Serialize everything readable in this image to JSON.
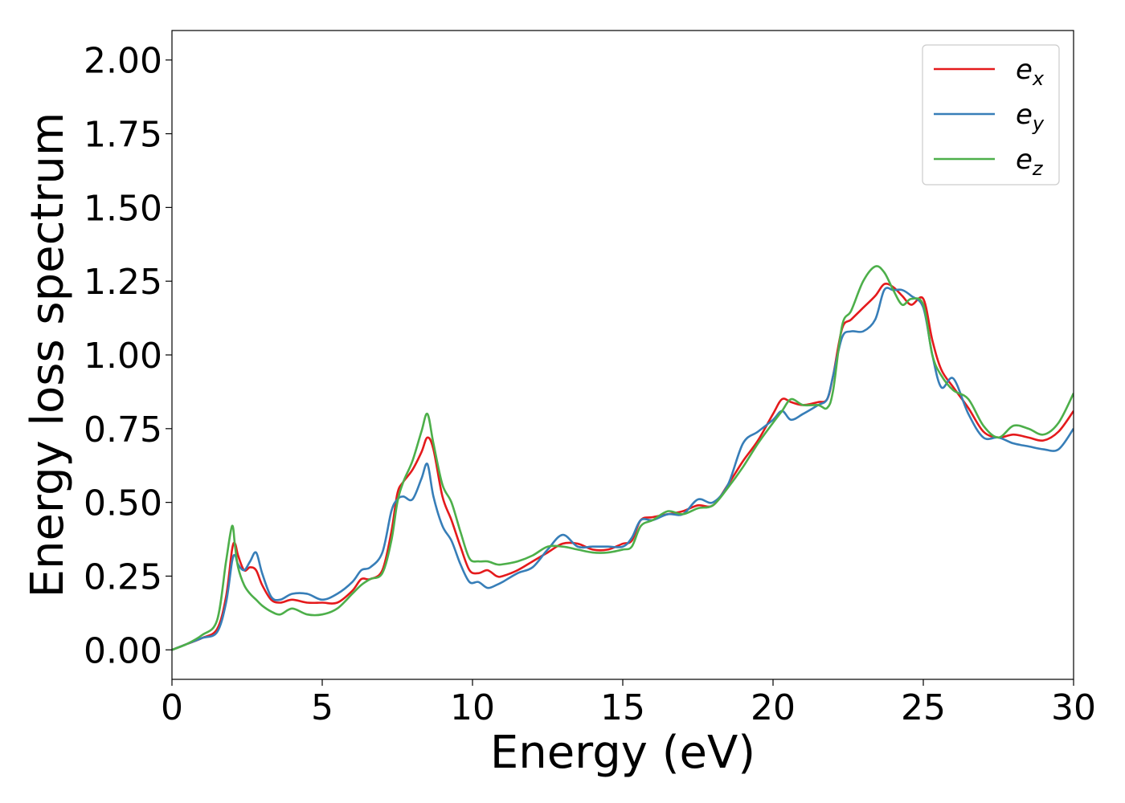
{
  "chart_data": {
    "type": "line",
    "title": "",
    "xlabel": "Energy (eV)",
    "ylabel": "Energy loss spectrum",
    "xlim": [
      0,
      30
    ],
    "ylim": [
      -0.1,
      2.1
    ],
    "xticks": [
      0,
      5,
      10,
      15,
      20,
      25,
      30
    ],
    "xtick_labels": [
      "0",
      "5",
      "10",
      "15",
      "20",
      "25",
      "30"
    ],
    "yticks": [
      0.0,
      0.25,
      0.5,
      0.75,
      1.0,
      1.25,
      1.5,
      1.75,
      2.0
    ],
    "ytick_labels": [
      "0.00",
      "0.25",
      "0.50",
      "0.75",
      "1.00",
      "1.25",
      "1.50",
      "1.75",
      "2.00"
    ],
    "grid": false,
    "legend_position": "top-right",
    "series": [
      {
        "name": "e",
        "subscript": "x",
        "color": "#e41a1c",
        "x": [
          0,
          0.5,
          1,
          1.5,
          1.8,
          2.0,
          2.1,
          2.2,
          2.4,
          2.6,
          2.8,
          3.0,
          3.3,
          3.6,
          4.0,
          4.5,
          5.0,
          5.5,
          6.0,
          6.3,
          6.6,
          7.0,
          7.3,
          7.5,
          7.7,
          8.0,
          8.3,
          8.5,
          8.7,
          9.0,
          9.3,
          9.6,
          9.9,
          10.2,
          10.5,
          10.8,
          11.0,
          11.5,
          12.0,
          12.5,
          13.0,
          13.5,
          14.0,
          14.5,
          15.0,
          15.3,
          15.6,
          16.0,
          16.5,
          17.0,
          17.5,
          18.0,
          18.5,
          19.0,
          19.5,
          20.0,
          20.3,
          20.6,
          21.0,
          21.5,
          21.8,
          22.0,
          22.3,
          22.6,
          23.0,
          23.4,
          23.7,
          24.0,
          24.3,
          24.6,
          25.0,
          25.3,
          25.6,
          26.0,
          26.5,
          27.0,
          27.5,
          28.0,
          28.5,
          29.0,
          29.5,
          30.0
        ],
        "y": [
          0.0,
          0.02,
          0.04,
          0.07,
          0.18,
          0.34,
          0.36,
          0.32,
          0.27,
          0.28,
          0.27,
          0.22,
          0.17,
          0.16,
          0.17,
          0.16,
          0.16,
          0.16,
          0.2,
          0.24,
          0.24,
          0.27,
          0.4,
          0.53,
          0.57,
          0.61,
          0.67,
          0.72,
          0.68,
          0.52,
          0.44,
          0.35,
          0.27,
          0.26,
          0.27,
          0.25,
          0.25,
          0.27,
          0.3,
          0.33,
          0.36,
          0.36,
          0.34,
          0.34,
          0.36,
          0.37,
          0.44,
          0.45,
          0.46,
          0.47,
          0.49,
          0.49,
          0.56,
          0.64,
          0.71,
          0.8,
          0.85,
          0.84,
          0.83,
          0.84,
          0.85,
          0.93,
          1.09,
          1.12,
          1.16,
          1.2,
          1.24,
          1.23,
          1.2,
          1.17,
          1.19,
          1.05,
          0.95,
          0.89,
          0.82,
          0.74,
          0.72,
          0.73,
          0.72,
          0.71,
          0.74,
          0.81
        ]
      },
      {
        "name": "e",
        "subscript": "y",
        "color": "#377eb8",
        "x": [
          0,
          0.5,
          1,
          1.5,
          1.8,
          2.0,
          2.1,
          2.2,
          2.4,
          2.6,
          2.8,
          3.0,
          3.3,
          3.6,
          4.0,
          4.5,
          5.0,
          5.5,
          6.0,
          6.3,
          6.6,
          7.0,
          7.3,
          7.5,
          7.7,
          8.0,
          8.3,
          8.5,
          8.7,
          9.0,
          9.3,
          9.6,
          9.9,
          10.2,
          10.5,
          10.8,
          11.0,
          11.5,
          12.0,
          12.5,
          13.0,
          13.5,
          14.0,
          14.5,
          15.0,
          15.3,
          15.6,
          16.0,
          16.5,
          17.0,
          17.5,
          18.0,
          18.5,
          19.0,
          19.5,
          20.0,
          20.3,
          20.6,
          21.0,
          21.5,
          21.8,
          22.0,
          22.3,
          22.6,
          23.0,
          23.4,
          23.7,
          24.0,
          24.3,
          24.6,
          25.0,
          25.3,
          25.6,
          26.0,
          26.5,
          27.0,
          27.5,
          28.0,
          28.5,
          29.0,
          29.5,
          30.0
        ],
        "y": [
          0.0,
          0.02,
          0.04,
          0.06,
          0.16,
          0.3,
          0.32,
          0.29,
          0.27,
          0.3,
          0.33,
          0.26,
          0.18,
          0.17,
          0.19,
          0.19,
          0.17,
          0.19,
          0.23,
          0.27,
          0.28,
          0.33,
          0.47,
          0.51,
          0.52,
          0.51,
          0.58,
          0.63,
          0.52,
          0.42,
          0.37,
          0.29,
          0.23,
          0.23,
          0.21,
          0.22,
          0.23,
          0.26,
          0.28,
          0.34,
          0.39,
          0.35,
          0.35,
          0.35,
          0.35,
          0.38,
          0.44,
          0.44,
          0.46,
          0.46,
          0.51,
          0.5,
          0.56,
          0.7,
          0.74,
          0.78,
          0.81,
          0.78,
          0.8,
          0.83,
          0.85,
          0.93,
          1.06,
          1.08,
          1.08,
          1.12,
          1.22,
          1.22,
          1.22,
          1.2,
          1.16,
          1.0,
          0.89,
          0.92,
          0.8,
          0.72,
          0.72,
          0.7,
          0.69,
          0.68,
          0.68,
          0.75
        ]
      },
      {
        "name": "e",
        "subscript": "z",
        "color": "#4daf4a",
        "x": [
          0,
          0.5,
          1,
          1.5,
          1.8,
          2.0,
          2.1,
          2.2,
          2.4,
          2.6,
          2.8,
          3.0,
          3.3,
          3.6,
          4.0,
          4.5,
          5.0,
          5.5,
          6.0,
          6.3,
          6.6,
          7.0,
          7.3,
          7.5,
          7.7,
          8.0,
          8.3,
          8.5,
          8.7,
          9.0,
          9.3,
          9.6,
          9.9,
          10.2,
          10.5,
          10.8,
          11.0,
          11.5,
          12.0,
          12.5,
          13.0,
          13.5,
          14.0,
          14.5,
          15.0,
          15.3,
          15.6,
          16.0,
          16.5,
          17.0,
          17.5,
          18.0,
          18.5,
          19.0,
          19.5,
          20.0,
          20.3,
          20.6,
          21.0,
          21.5,
          21.8,
          22.0,
          22.3,
          22.6,
          23.0,
          23.4,
          23.7,
          24.0,
          24.3,
          24.6,
          25.0,
          25.3,
          25.6,
          26.0,
          26.5,
          27.0,
          27.5,
          28.0,
          28.5,
          29.0,
          29.5,
          30.0
        ],
        "y": [
          0.0,
          0.02,
          0.05,
          0.1,
          0.3,
          0.42,
          0.35,
          0.28,
          0.22,
          0.19,
          0.17,
          0.15,
          0.13,
          0.12,
          0.14,
          0.12,
          0.12,
          0.14,
          0.19,
          0.22,
          0.24,
          0.26,
          0.37,
          0.5,
          0.57,
          0.64,
          0.74,
          0.8,
          0.7,
          0.56,
          0.5,
          0.4,
          0.31,
          0.3,
          0.3,
          0.29,
          0.29,
          0.3,
          0.32,
          0.35,
          0.35,
          0.34,
          0.33,
          0.33,
          0.34,
          0.35,
          0.42,
          0.44,
          0.47,
          0.46,
          0.48,
          0.49,
          0.55,
          0.62,
          0.7,
          0.77,
          0.81,
          0.85,
          0.83,
          0.83,
          0.82,
          0.88,
          1.1,
          1.15,
          1.25,
          1.3,
          1.28,
          1.22,
          1.17,
          1.19,
          1.17,
          1.0,
          0.93,
          0.88,
          0.85,
          0.76,
          0.72,
          0.76,
          0.75,
          0.73,
          0.77,
          0.87
        ]
      }
    ]
  }
}
